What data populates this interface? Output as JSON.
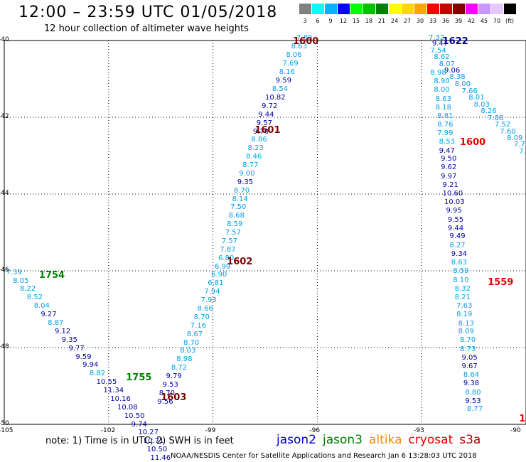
{
  "header": {
    "title": "12:00 – 23:59 UTC 01/05/2018",
    "subtitle": "12 hour collection of altimeter wave heights"
  },
  "color_scale": {
    "unit": "(ft)",
    "steps": [
      {
        "label": "3",
        "color": "#808080"
      },
      {
        "label": "6",
        "color": "#00ffff"
      },
      {
        "label": "9",
        "color": "#00b4ff"
      },
      {
        "label": "12",
        "color": "#0000ff"
      },
      {
        "label": "15",
        "color": "#00ff00"
      },
      {
        "label": "18",
        "color": "#00c000"
      },
      {
        "label": "21",
        "color": "#008000"
      },
      {
        "label": "24",
        "color": "#ffff00"
      },
      {
        "label": "27",
        "color": "#ffd700"
      },
      {
        "label": "30",
        "color": "#ffa500"
      },
      {
        "label": "33",
        "color": "#ff0000"
      },
      {
        "label": "36",
        "color": "#c80000"
      },
      {
        "label": "39",
        "color": "#800000"
      },
      {
        "label": "42",
        "color": "#ff00ff"
      },
      {
        "label": "45",
        "color": "#c896ff"
      },
      {
        "label": "70",
        "color": "#e6c8ff"
      },
      {
        "label": "",
        "color": "#000000"
      }
    ]
  },
  "map": {
    "lat_labels": [
      "-40",
      "-42",
      "-44",
      "-46",
      "-48",
      "-50"
    ],
    "lon_labels": [
      "-105",
      "-102",
      "-99",
      "-96",
      "-93",
      "-90"
    ],
    "lon_range": [
      -105,
      -90
    ],
    "lat_range": [
      -50,
      -40
    ]
  },
  "colors": {
    "jason2": "#0000c8",
    "jason3": "#008000",
    "altika": "#ff8c00",
    "cryosat": "#e60000",
    "s3a": "#b40000",
    "lightblue": "#00a0e6",
    "darkblue": "#0000a0",
    "timeA": "#800000",
    "timeB": "#008000",
    "timeC": "#000096",
    "timeD": "#e60000"
  },
  "track_times": [
    {
      "text": "1600",
      "lon": -96.7,
      "lat": -40.02,
      "color": "timeA"
    },
    {
      "text": "1601",
      "lon": -97.8,
      "lat": -42.33,
      "color": "timeA"
    },
    {
      "text": "1602",
      "lon": -98.6,
      "lat": -45.75,
      "color": "timeA"
    },
    {
      "text": "1603",
      "lon": -100.5,
      "lat": -49.29,
      "color": "timeA"
    },
    {
      "text": "1754",
      "lon": -104.0,
      "lat": -46.11,
      "color": "timeB"
    },
    {
      "text": "1755",
      "lon": -101.5,
      "lat": -48.78,
      "color": "timeB"
    },
    {
      "text": "1622",
      "lon": -92.4,
      "lat": -40.02,
      "color": "timeC"
    },
    {
      "text": "1600",
      "lon": -91.9,
      "lat": -42.64,
      "color": "timeD"
    },
    {
      "text": "1559",
      "lon": -91.1,
      "lat": -46.3,
      "color": "timeD"
    },
    {
      "text": "15",
      "lon": -90.2,
      "lat": -49.86,
      "color": "timeD"
    }
  ],
  "waves": [
    {
      "text": "7.89",
      "lon": -96.6,
      "lat": -39.95,
      "c": "lightblue"
    },
    {
      "text": "8.63",
      "lon": -96.75,
      "lat": -40.17,
      "c": "lightblue"
    },
    {
      "text": "8.06",
      "lon": -96.9,
      "lat": -40.39,
      "c": "lightblue"
    },
    {
      "text": "7.69",
      "lon": -97.0,
      "lat": -40.61,
      "c": "lightblue"
    },
    {
      "text": "8.16",
      "lon": -97.1,
      "lat": -40.83,
      "c": "lightblue"
    },
    {
      "text": "9.59",
      "lon": -97.2,
      "lat": -41.05,
      "c": "darkblue"
    },
    {
      "text": "8.54",
      "lon": -97.3,
      "lat": -41.27,
      "c": "lightblue"
    },
    {
      "text": "10.82",
      "lon": -97.5,
      "lat": -41.5,
      "c": "darkblue"
    },
    {
      "text": "9.72",
      "lon": -97.6,
      "lat": -41.72,
      "c": "darkblue"
    },
    {
      "text": "9.44",
      "lon": -97.7,
      "lat": -41.94,
      "c": "darkblue"
    },
    {
      "text": "9.57",
      "lon": -97.75,
      "lat": -42.16,
      "c": "darkblue"
    },
    {
      "text": "9.70",
      "lon": -97.85,
      "lat": -42.38,
      "c": "darkblue"
    },
    {
      "text": "8.86",
      "lon": -97.9,
      "lat": -42.6,
      "c": "lightblue"
    },
    {
      "text": "8.23",
      "lon": -98.0,
      "lat": -42.82,
      "c": "lightblue"
    },
    {
      "text": "8.46",
      "lon": -98.05,
      "lat": -43.04,
      "c": "lightblue"
    },
    {
      "text": "8.77",
      "lon": -98.15,
      "lat": -43.26,
      "c": "lightblue"
    },
    {
      "text": "9.00",
      "lon": -98.25,
      "lat": -43.48,
      "c": "lightblue"
    },
    {
      "text": "9.35",
      "lon": -98.3,
      "lat": -43.7,
      "c": "darkblue"
    },
    {
      "text": "8.70",
      "lon": -98.4,
      "lat": -43.92,
      "c": "lightblue"
    },
    {
      "text": "8.14",
      "lon": -98.45,
      "lat": -44.14,
      "c": "lightblue"
    },
    {
      "text": "7.50",
      "lon": -98.5,
      "lat": -44.36,
      "c": "lightblue"
    },
    {
      "text": "8.68",
      "lon": -98.55,
      "lat": -44.58,
      "c": "lightblue"
    },
    {
      "text": "8.59",
      "lon": -98.6,
      "lat": -44.8,
      "c": "lightblue"
    },
    {
      "text": "7.57",
      "lon": -98.65,
      "lat": -45.02,
      "c": "lightblue"
    },
    {
      "text": "7.57",
      "lon": -98.75,
      "lat": -45.24,
      "c": "lightblue"
    },
    {
      "text": "7.87",
      "lon": -98.8,
      "lat": -45.46,
      "c": "lightblue"
    },
    {
      "text": "6.80",
      "lon": -98.85,
      "lat": -45.68,
      "c": "lightblue"
    },
    {
      "text": "6.99",
      "lon": -98.95,
      "lat": -45.9,
      "c": "lightblue"
    },
    {
      "text": "6.90",
      "lon": -99.05,
      "lat": -46.12,
      "c": "lightblue"
    },
    {
      "text": "6.81",
      "lon": -99.15,
      "lat": -46.34,
      "c": "lightblue"
    },
    {
      "text": "7.94",
      "lon": -99.25,
      "lat": -46.56,
      "c": "lightblue"
    },
    {
      "text": "7.93",
      "lon": -99.35,
      "lat": -46.78,
      "c": "lightblue"
    },
    {
      "text": "8.66",
      "lon": -99.45,
      "lat": -47.0,
      "c": "lightblue"
    },
    {
      "text": "8.70",
      "lon": -99.55,
      "lat": -47.22,
      "c": "lightblue"
    },
    {
      "text": "7.16",
      "lon": -99.65,
      "lat": -47.44,
      "c": "lightblue"
    },
    {
      "text": "8.67",
      "lon": -99.75,
      "lat": -47.66,
      "c": "lightblue"
    },
    {
      "text": "8.70",
      "lon": -99.85,
      "lat": -47.88,
      "c": "lightblue"
    },
    {
      "text": "8.03",
      "lon": -99.95,
      "lat": -48.1,
      "c": "lightblue"
    },
    {
      "text": "8.98",
      "lon": -100.05,
      "lat": -48.32,
      "c": "lightblue"
    },
    {
      "text": "8.72",
      "lon": -100.2,
      "lat": -48.54,
      "c": "lightblue"
    },
    {
      "text": "9.79",
      "lon": -100.35,
      "lat": -48.76,
      "c": "darkblue"
    },
    {
      "text": "9.53",
      "lon": -100.45,
      "lat": -48.98,
      "c": "darkblue"
    },
    {
      "text": "8.70",
      "lon": -100.55,
      "lat": -49.2,
      "c": "darkblue"
    },
    {
      "text": "9.56",
      "lon": -100.6,
      "lat": -49.42,
      "c": "darkblue"
    },
    {
      "text": "7.39",
      "lon": -104.95,
      "lat": -46.05,
      "c": "lightblue"
    },
    {
      "text": "8.05",
      "lon": -104.75,
      "lat": -46.27,
      "c": "lightblue"
    },
    {
      "text": "8.22",
      "lon": -104.55,
      "lat": -46.49,
      "c": "lightblue"
    },
    {
      "text": "8.52",
      "lon": -104.35,
      "lat": -46.71,
      "c": "lightblue"
    },
    {
      "text": "8.04",
      "lon": -104.15,
      "lat": -46.93,
      "c": "lightblue"
    },
    {
      "text": "9.27",
      "lon": -103.95,
      "lat": -47.15,
      "c": "darkblue"
    },
    {
      "text": "8.87",
      "lon": -103.75,
      "lat": -47.37,
      "c": "lightblue"
    },
    {
      "text": "9.12",
      "lon": -103.55,
      "lat": -47.59,
      "c": "darkblue"
    },
    {
      "text": "9.35",
      "lon": -103.35,
      "lat": -47.81,
      "c": "darkblue"
    },
    {
      "text": "9.77",
      "lon": -103.15,
      "lat": -48.03,
      "c": "darkblue"
    },
    {
      "text": "9.59",
      "lon": -102.95,
      "lat": -48.25,
      "c": "darkblue"
    },
    {
      "text": "9.94",
      "lon": -102.75,
      "lat": -48.47,
      "c": "darkblue"
    },
    {
      "text": "8.82",
      "lon": -102.55,
      "lat": -48.69,
      "c": "lightblue"
    },
    {
      "text": "10.55",
      "lon": -102.35,
      "lat": -48.91,
      "c": "darkblue"
    },
    {
      "text": "11.34",
      "lon": -102.15,
      "lat": -49.13,
      "c": "darkblue"
    },
    {
      "text": "10.16",
      "lon": -101.95,
      "lat": -49.35,
      "c": "darkblue"
    },
    {
      "text": "10.08",
      "lon": -101.75,
      "lat": -49.57,
      "c": "darkblue"
    },
    {
      "text": "10.50",
      "lon": -101.55,
      "lat": -49.79,
      "c": "darkblue"
    },
    {
      "text": "9.74",
      "lon": -101.35,
      "lat": -50.01,
      "c": "darkblue"
    },
    {
      "text": "10.27",
      "lon": -101.15,
      "lat": -50.23,
      "c": "darkblue"
    },
    {
      "text": "10.71",
      "lon": -101.0,
      "lat": -50.45,
      "c": "darkblue"
    },
    {
      "text": "10.50",
      "lon": -100.9,
      "lat": -50.67,
      "c": "darkblue"
    },
    {
      "text": "11.46",
      "lon": -100.8,
      "lat": -50.89,
      "c": "darkblue"
    },
    {
      "text": "7.32",
      "lon": -92.8,
      "lat": -39.95,
      "c": "lightblue"
    },
    {
      "text": "9.47",
      "lon": -92.7,
      "lat": -40.1,
      "c": "darkblue"
    },
    {
      "text": "7.54",
      "lon": -92.75,
      "lat": -40.27,
      "c": "lightblue"
    },
    {
      "text": "8.62",
      "lon": -92.65,
      "lat": -40.45,
      "c": "lightblue"
    },
    {
      "text": "8.07",
      "lon": -92.5,
      "lat": -40.63,
      "c": "lightblue"
    },
    {
      "text": "9.06",
      "lon": -92.35,
      "lat": -40.8,
      "c": "darkblue"
    },
    {
      "text": "8.38",
      "lon": -92.2,
      "lat": -40.97,
      "c": "lightblue"
    },
    {
      "text": "8.00",
      "lon": -92.05,
      "lat": -41.15,
      "c": "lightblue"
    },
    {
      "text": "7.66",
      "lon": -91.85,
      "lat": -41.33,
      "c": "lightblue"
    },
    {
      "text": "8.01",
      "lon": -91.65,
      "lat": -41.5,
      "c": "lightblue"
    },
    {
      "text": "8.03",
      "lon": -91.5,
      "lat": -41.68,
      "c": "lightblue"
    },
    {
      "text": "8.26",
      "lon": -91.3,
      "lat": -41.85,
      "c": "lightblue"
    },
    {
      "text": "7.88",
      "lon": -91.1,
      "lat": -42.03,
      "c": "lightblue"
    },
    {
      "text": "7.52",
      "lon": -90.9,
      "lat": -42.2,
      "c": "lightblue"
    },
    {
      "text": "7.60",
      "lon": -90.75,
      "lat": -42.38,
      "c": "lightblue"
    },
    {
      "text": "8.09",
      "lon": -90.55,
      "lat": -42.55,
      "c": "lightblue"
    },
    {
      "text": "7.78",
      "lon": -90.35,
      "lat": -42.73,
      "c": "lightblue"
    },
    {
      "text": "7.6",
      "lon": -90.2,
      "lat": -42.9,
      "c": "lightblue"
    },
    {
      "text": "8.98",
      "lon": -92.75,
      "lat": -40.85,
      "c": "lightblue"
    },
    {
      "text": "8.90",
      "lon": -92.65,
      "lat": -41.08,
      "c": "lightblue"
    },
    {
      "text": "8.00",
      "lon": -92.65,
      "lat": -41.3,
      "c": "lightblue"
    },
    {
      "text": "8.63",
      "lon": -92.6,
      "lat": -41.54,
      "c": "lightblue"
    },
    {
      "text": "8.18",
      "lon": -92.6,
      "lat": -41.76,
      "c": "lightblue"
    },
    {
      "text": "8.81",
      "lon": -92.55,
      "lat": -41.98,
      "c": "lightblue"
    },
    {
      "text": "8.76",
      "lon": -92.55,
      "lat": -42.2,
      "c": "lightblue"
    },
    {
      "text": "7.99",
      "lon": -92.55,
      "lat": -42.42,
      "c": "lightblue"
    },
    {
      "text": "8.53",
      "lon": -92.5,
      "lat": -42.65,
      "c": "lightblue"
    },
    {
      "text": "9.47",
      "lon": -92.5,
      "lat": -42.88,
      "c": "darkblue"
    },
    {
      "text": "9.50",
      "lon": -92.45,
      "lat": -43.1,
      "c": "darkblue"
    },
    {
      "text": "9.62",
      "lon": -92.45,
      "lat": -43.32,
      "c": "darkblue"
    },
    {
      "text": "9.97",
      "lon": -92.45,
      "lat": -43.55,
      "c": "darkblue"
    },
    {
      "text": "9.21",
      "lon": -92.4,
      "lat": -43.78,
      "c": "darkblue"
    },
    {
      "text": "10.60",
      "lon": -92.4,
      "lat": -44.0,
      "c": "darkblue"
    },
    {
      "text": "10.03",
      "lon": -92.35,
      "lat": -44.22,
      "c": "darkblue"
    },
    {
      "text": "9.95",
      "lon": -92.3,
      "lat": -44.45,
      "c": "darkblue"
    },
    {
      "text": "9.55",
      "lon": -92.25,
      "lat": -44.68,
      "c": "darkblue"
    },
    {
      "text": "9.44",
      "lon": -92.25,
      "lat": -44.9,
      "c": "darkblue"
    },
    {
      "text": "9.49",
      "lon": -92.2,
      "lat": -45.12,
      "c": "darkblue"
    },
    {
      "text": "8.27",
      "lon": -92.2,
      "lat": -45.35,
      "c": "lightblue"
    },
    {
      "text": "9.34",
      "lon": -92.15,
      "lat": -45.58,
      "c": "darkblue"
    },
    {
      "text": "8.63",
      "lon": -92.15,
      "lat": -45.8,
      "c": "lightblue"
    },
    {
      "text": "8.59",
      "lon": -92.1,
      "lat": -46.02,
      "c": "lightblue"
    },
    {
      "text": "8.10",
      "lon": -92.1,
      "lat": -46.25,
      "c": "lightblue"
    },
    {
      "text": "8.32",
      "lon": -92.05,
      "lat": -46.48,
      "c": "lightblue"
    },
    {
      "text": "8.21",
      "lon": -92.05,
      "lat": -46.7,
      "c": "lightblue"
    },
    {
      "text": "7.63",
      "lon": -92.0,
      "lat": -46.92,
      "c": "lightblue"
    },
    {
      "text": "8.19",
      "lon": -92.0,
      "lat": -47.15,
      "c": "lightblue"
    },
    {
      "text": "8.13",
      "lon": -91.95,
      "lat": -47.38,
      "c": "lightblue"
    },
    {
      "text": "8.09",
      "lon": -91.95,
      "lat": -47.6,
      "c": "lightblue"
    },
    {
      "text": "8.70",
      "lon": -91.9,
      "lat": -47.82,
      "c": "lightblue"
    },
    {
      "text": "8.73",
      "lon": -91.9,
      "lat": -48.05,
      "c": "lightblue"
    },
    {
      "text": "9.05",
      "lon": -91.85,
      "lat": -48.28,
      "c": "darkblue"
    },
    {
      "text": "9.67",
      "lon": -91.85,
      "lat": -48.5,
      "c": "darkblue"
    },
    {
      "text": "8.64",
      "lon": -91.8,
      "lat": -48.72,
      "c": "lightblue"
    },
    {
      "text": "9.38",
      "lon": -91.8,
      "lat": -48.95,
      "c": "darkblue"
    },
    {
      "text": "8.80",
      "lon": -91.75,
      "lat": -49.18,
      "c": "lightblue"
    },
    {
      "text": "9.53",
      "lon": -91.75,
      "lat": -49.4,
      "c": "darkblue"
    },
    {
      "text": "8.77",
      "lon": -91.7,
      "lat": -49.62,
      "c": "lightblue"
    }
  ],
  "note": "note: 1) Time is in UTC; 2) SWH is in feet",
  "legend": [
    {
      "label": "jason2",
      "color": "jason2"
    },
    {
      "label": "jason3",
      "color": "jason3"
    },
    {
      "label": "altika",
      "color": "altika"
    },
    {
      "label": "cryosat",
      "color": "cryosat"
    },
    {
      "label": "s3a",
      "color": "s3a"
    }
  ],
  "footer": "NOAA/NESDIS Center for Satellite Applications and Research   Jan  6 13:28:03 UTC 2018"
}
